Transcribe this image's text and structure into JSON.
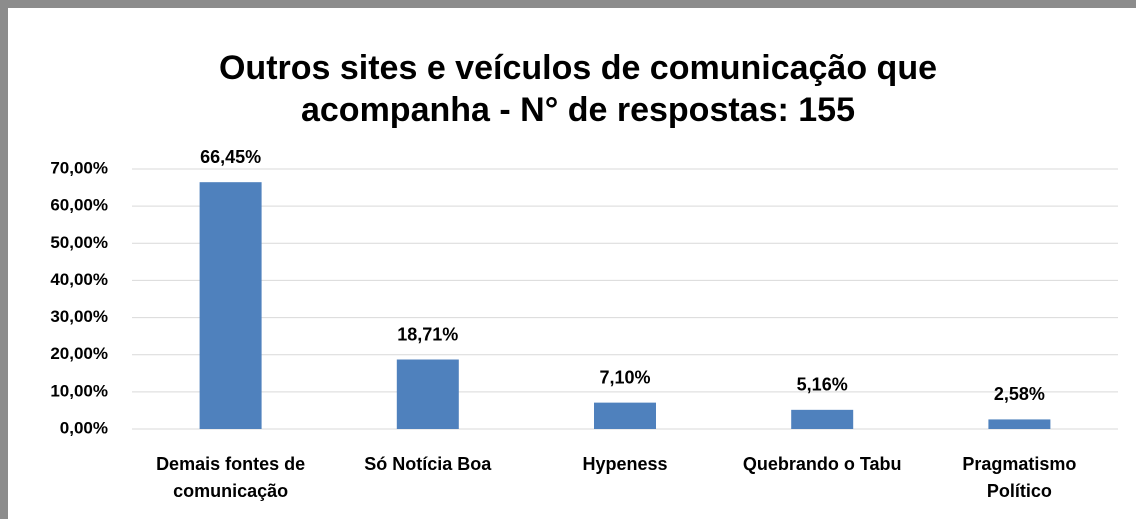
{
  "chart_data": {
    "type": "bar",
    "title": "Outros sites e veículos de comunicação que acompanha - N° de respostas: 155",
    "categories": [
      "Demais fontes de comunicação",
      "Só Notícia Boa",
      "Hypeness",
      "Quebrando o Tabu",
      "Pragmatismo Político"
    ],
    "values": [
      66.45,
      18.71,
      7.1,
      5.16,
      2.58
    ],
    "value_labels": [
      "66,45%",
      "18,71%",
      "7,10%",
      "5,16%",
      "2,58%"
    ],
    "color": "#4f81bd",
    "ylim": [
      0,
      70
    ],
    "yticks": [
      {
        "value": 0,
        "label": "0,00%"
      },
      {
        "value": 10,
        "label": "10,00%"
      },
      {
        "value": 20,
        "label": "20,00%"
      },
      {
        "value": 30,
        "label": "30,00%"
      },
      {
        "value": 40,
        "label": "40,00%"
      },
      {
        "value": 50,
        "label": "50,00%"
      },
      {
        "value": 60,
        "label": "60,00%"
      },
      {
        "value": 70,
        "label": "70,00%"
      }
    ],
    "grid": true
  }
}
